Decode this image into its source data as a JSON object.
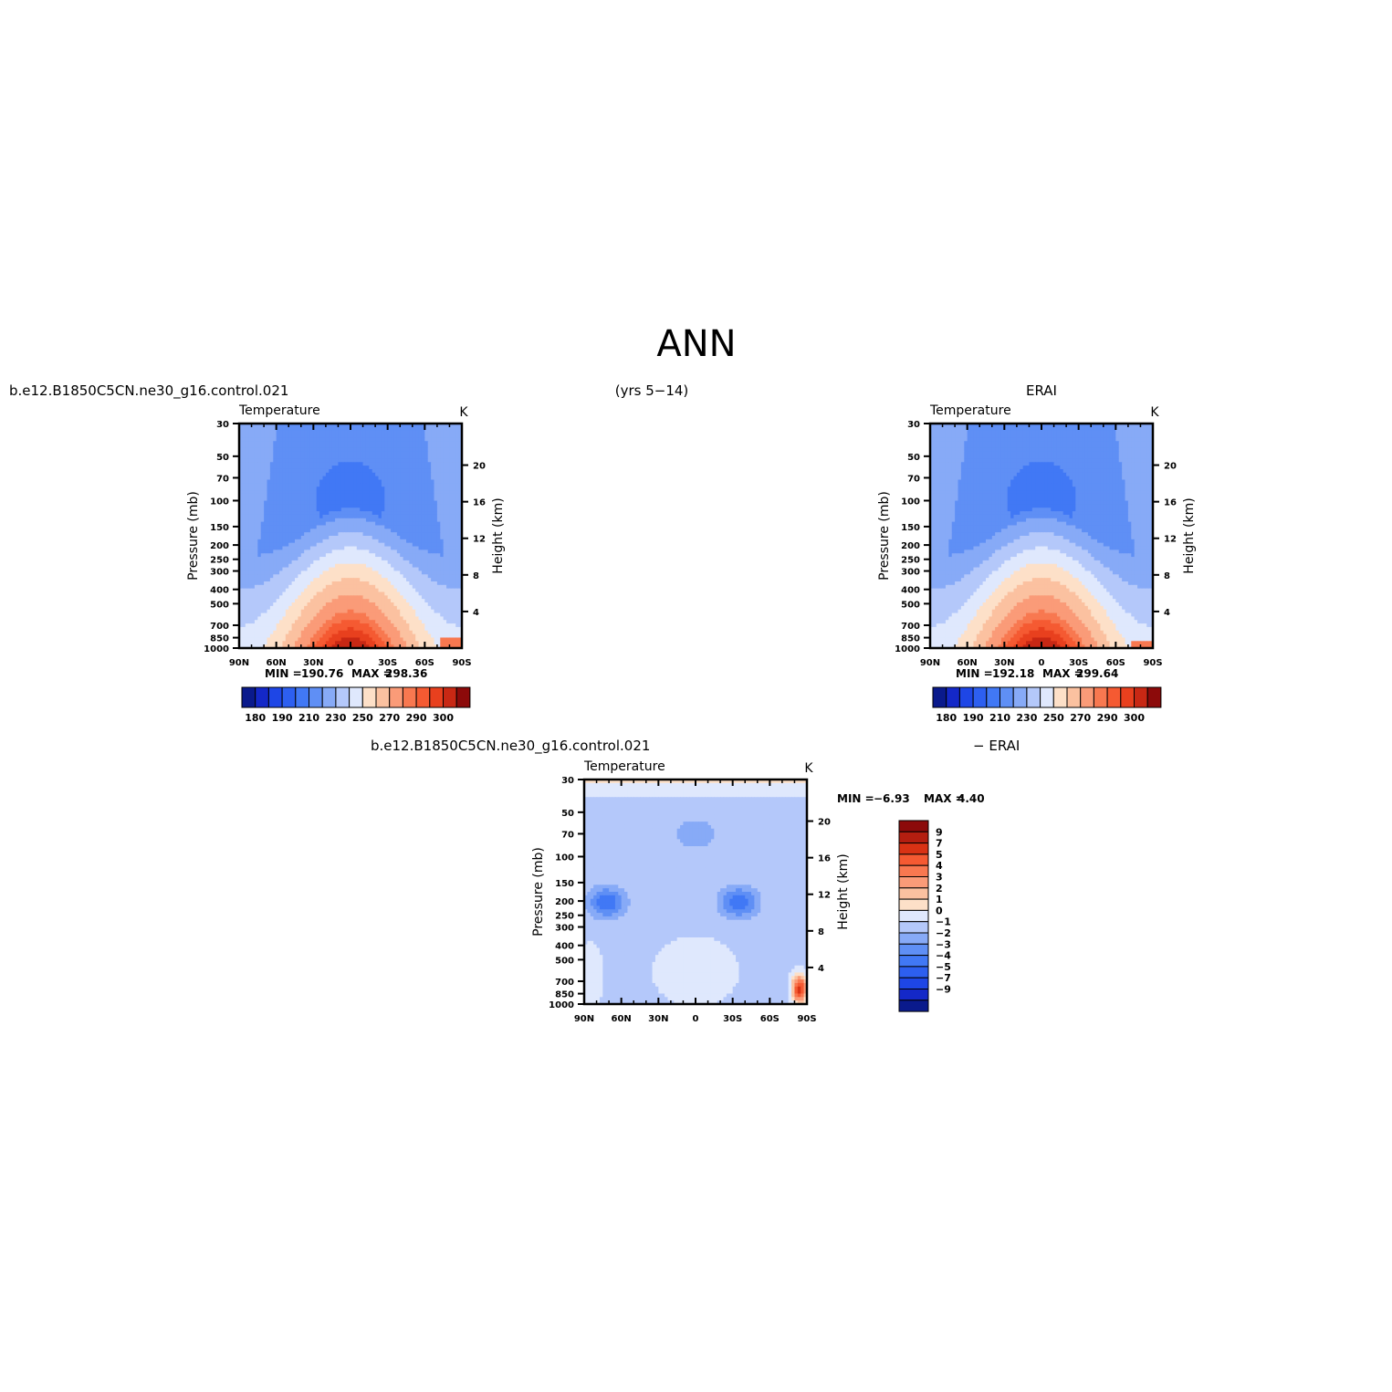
{
  "figure": {
    "title": "ANN",
    "model_label": "b.e12.B1850C5CN.ne30_g16.control.021",
    "years_label": "(yrs 5−14)",
    "obs_label": "ERAI",
    "diff_left_label": "b.e12.B1850C5CN.ne30_g16.control.021",
    "diff_right_label": "− ERAI"
  },
  "chart_data": [
    {
      "id": "model",
      "type": "heatmap",
      "variable_label": "Temperature",
      "units_label": "K",
      "ylabel_left": "Pressure (mb)",
      "ylabel_right": "Height (km)",
      "x_ticks": [
        "90N",
        "60N",
        "30N",
        "0",
        "30S",
        "60S",
        "90S"
      ],
      "y_ticks": [
        "30",
        "50",
        "70",
        "100",
        "150",
        "200",
        "250",
        "300",
        "400",
        "500",
        "700",
        "850",
        "1000"
      ],
      "height_ticks": [
        "4",
        "8",
        "12",
        "16",
        "20"
      ],
      "stats": {
        "min_label": "MIN =",
        "min": "190.76",
        "max_label": "MAX =",
        "max": "298.36"
      },
      "colorbar_labels": [
        "180",
        "190",
        "210",
        "230",
        "250",
        "270",
        "290",
        "300"
      ],
      "orientation": "horizontal",
      "warm_cap_pressure": 850
    },
    {
      "id": "obs",
      "type": "heatmap",
      "variable_label": "Temperature",
      "units_label": "K",
      "ylabel_left": "Pressure (mb)",
      "ylabel_right": "Height (km)",
      "x_ticks": [
        "90N",
        "60N",
        "30N",
        "0",
        "30S",
        "60S",
        "90S"
      ],
      "y_ticks": [
        "30",
        "50",
        "70",
        "100",
        "150",
        "200",
        "250",
        "300",
        "400",
        "500",
        "700",
        "850",
        "1000"
      ],
      "height_ticks": [
        "4",
        "8",
        "12",
        "16",
        "20"
      ],
      "stats": {
        "min_label": "MIN =",
        "min": "192.18",
        "max_label": "MAX =",
        "max": "299.64"
      },
      "colorbar_labels": [
        "180",
        "190",
        "210",
        "230",
        "250",
        "270",
        "290",
        "300"
      ],
      "orientation": "horizontal",
      "warm_cap_pressure": 900
    },
    {
      "id": "diff",
      "type": "heatmap",
      "variable_label": "Temperature",
      "units_label": "K",
      "ylabel_left": "Pressure (mb)",
      "ylabel_right": "Height (km)",
      "x_ticks": [
        "90N",
        "60N",
        "30N",
        "0",
        "30S",
        "60S",
        "90S"
      ],
      "y_ticks": [
        "30",
        "50",
        "70",
        "100",
        "150",
        "200",
        "250",
        "300",
        "400",
        "500",
        "700",
        "850",
        "1000"
      ],
      "height_ticks": [
        "4",
        "8",
        "12",
        "16",
        "20"
      ],
      "stats": {
        "min_label": "MIN =",
        "min": "−6.93",
        "max_label": "MAX =",
        "max": "4.40"
      },
      "colorbar_labels": [
        "9",
        "7",
        "5",
        "4",
        "3",
        "2",
        "1",
        "0",
        "−1",
        "−2",
        "−3",
        "−4",
        "−5",
        "−7",
        "−9"
      ],
      "orientation": "vertical"
    }
  ],
  "colors": {
    "temp_levels": [
      "#0a1a8c",
      "#1428c8",
      "#1e46e6",
      "#2d5ff0",
      "#4178f5",
      "#5f8ff5",
      "#87aaf7",
      "#b4c8fa",
      "#dfe8fd",
      "#fde0c8",
      "#fbc1a0",
      "#fa9b78",
      "#f87850",
      "#f55a32",
      "#e8401e",
      "#c82814",
      "#8c0a0a"
    ],
    "diff_levels": [
      "#8c0a0a",
      "#b41e10",
      "#d93214",
      "#f55a32",
      "#f87850",
      "#fa9b78",
      "#fbc1a0",
      "#fde0c8",
      "#dfe8fd",
      "#b4c8fa",
      "#87aaf7",
      "#5f8ff5",
      "#4178f5",
      "#2d5ff0",
      "#1e46e6",
      "#1428c8",
      "#0a1a8c"
    ]
  }
}
